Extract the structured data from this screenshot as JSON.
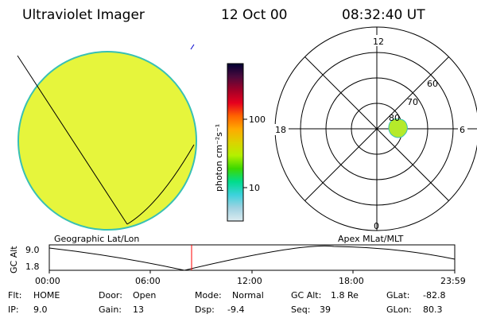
{
  "header": {
    "instrument": "Ultraviolet Imager",
    "date": "12 Oct 00",
    "time": "08:32:40 UT"
  },
  "colors": {
    "disk_fill": "#e6f53c",
    "disk_edge": "#38c0b4",
    "oval_fill": "#b5ea2a",
    "cursor_line": "#ff0000",
    "grid": "#000000"
  },
  "colorbar": {
    "unit_label": "photon cm⁻²s⁻¹",
    "ticks": [
      "100",
      "10"
    ],
    "stops": [
      "#000033",
      "#4b0a3c",
      "#a00028",
      "#e6001e",
      "#ff6400",
      "#ffaa00",
      "#dcd200",
      "#b4f000",
      "#3cd800",
      "#00dc8c",
      "#3cd2dc",
      "#a0d2e1",
      "#dcebf0"
    ]
  },
  "polar_plot": {
    "mlt_labels": {
      "top": "12",
      "right": "6",
      "left": "18",
      "bottom": "0"
    },
    "lat_labels": [
      "60",
      "70",
      "80"
    ]
  },
  "left_label": "Geographic Lat/Lon",
  "right_label": "Apex MLat/MLT",
  "alt_plot": {
    "axis_title": "GC Alt",
    "y_ticks": [
      "9.0",
      "1.8"
    ],
    "x_ticks": [
      "00:00",
      "06:00",
      "12:00",
      "18:00",
      "23:59"
    ],
    "cursor_time": "08:32:40"
  },
  "status": {
    "flt": {
      "label": "Flt:",
      "value": "HOME"
    },
    "door": {
      "label": "Door:",
      "value": "Open"
    },
    "mode": {
      "label": "Mode:",
      "value": "Normal"
    },
    "gc_alt": {
      "label": "GC Alt:",
      "value": "1.8 Re"
    },
    "glat": {
      "label": "GLat:",
      "value": "-82.8"
    },
    "ip": {
      "label": "IP:",
      "value": "9.0"
    },
    "gain": {
      "label": "Gain:",
      "value": "13"
    },
    "dsp": {
      "label": "Dsp:",
      "value": "-9.4"
    },
    "seq": {
      "label": "Seq:",
      "value": "39"
    },
    "glon": {
      "label": "GLon:",
      "value": "80.3"
    }
  }
}
